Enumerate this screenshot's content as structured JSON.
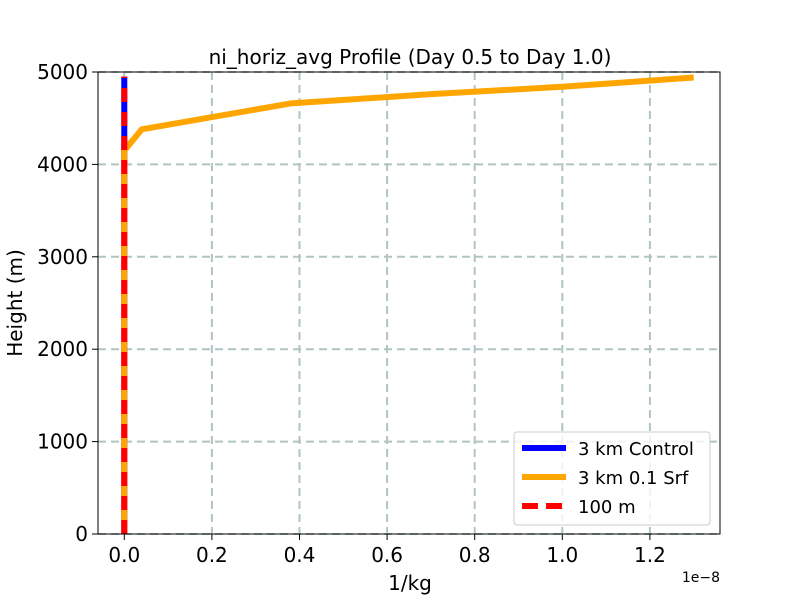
{
  "chart_data": {
    "type": "line",
    "title": "ni_horiz_avg Profile (Day 0.5 to Day 1.0)",
    "xlabel": "1/kg",
    "ylabel": "Height (m)",
    "x_offset_label": "1e−8",
    "x_scale": 1e-08,
    "xlim": [
      -0.06,
      1.36
    ],
    "ylim": [
      0,
      5000
    ],
    "xticks": [
      0.0,
      0.2,
      0.4,
      0.6,
      0.8,
      1.0,
      1.2
    ],
    "xtick_labels": [
      "0.0",
      "0.2",
      "0.4",
      "0.6",
      "0.8",
      "1.0",
      "1.2"
    ],
    "yticks": [
      0,
      1000,
      2000,
      3000,
      4000,
      5000
    ],
    "ytick_labels": [
      "0",
      "1000",
      "2000",
      "3000",
      "4000",
      "5000"
    ],
    "grid": true,
    "legend_position": "lower-right",
    "series": [
      {
        "name": "3 km Control",
        "color": "#0000ff",
        "dash": "solid",
        "points": [
          [
            0.0,
            0
          ],
          [
            0.0,
            1000
          ],
          [
            0.0,
            2000
          ],
          [
            0.0,
            3000
          ],
          [
            0.0,
            4000
          ],
          [
            0.0,
            4200
          ],
          [
            0.0,
            4500
          ],
          [
            0.0,
            4950
          ]
        ]
      },
      {
        "name": "3 km 0.1 Srf",
        "color": "#ffa500",
        "dash": "solid",
        "points": [
          [
            0.0,
            0
          ],
          [
            0.0,
            1000
          ],
          [
            0.0,
            2000
          ],
          [
            0.0,
            3000
          ],
          [
            0.0,
            4000
          ],
          [
            0.0,
            4150
          ],
          [
            0.04,
            4380
          ],
          [
            0.38,
            4660
          ],
          [
            0.7,
            4760
          ],
          [
            1.0,
            4840
          ],
          [
            1.3,
            4940
          ]
        ]
      },
      {
        "name": "100 m",
        "color": "#ff0000",
        "dash": "dashed",
        "points": [
          [
            0.0,
            0
          ],
          [
            0.0,
            1000
          ],
          [
            0.0,
            2000
          ],
          [
            0.0,
            3000
          ],
          [
            0.0,
            4000
          ],
          [
            0.0,
            4950
          ]
        ]
      }
    ]
  }
}
